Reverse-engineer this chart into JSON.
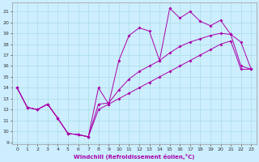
{
  "title": "",
  "xlabel": "Windchill (Refroidissement éolien,°C)",
  "xlim": [
    -0.5,
    23.5
  ],
  "ylim": [
    8.8,
    21.8
  ],
  "xticks": [
    0,
    1,
    2,
    3,
    4,
    5,
    6,
    7,
    8,
    9,
    10,
    11,
    12,
    13,
    14,
    15,
    16,
    17,
    18,
    19,
    20,
    21,
    22,
    23
  ],
  "yticks": [
    9,
    10,
    11,
    12,
    13,
    14,
    15,
    16,
    17,
    18,
    19,
    20,
    21
  ],
  "bg_color": "#cceeff",
  "grid_color": "#aadddd",
  "line_color": "#aa00aa",
  "line1_x": [
    0,
    1,
    2,
    3,
    4,
    5,
    6,
    7,
    8,
    9,
    10,
    11,
    12,
    13,
    14,
    15,
    16,
    17,
    18,
    19,
    20,
    21,
    22,
    23
  ],
  "line1_y": [
    14.0,
    12.2,
    12.0,
    12.5,
    11.2,
    9.8,
    9.7,
    9.5,
    14.0,
    12.5,
    16.5,
    18.8,
    19.5,
    19.2,
    16.5,
    21.3,
    20.4,
    21.0,
    20.1,
    19.7,
    20.2,
    18.9,
    16.0,
    15.7
  ],
  "line2_x": [
    0,
    1,
    2,
    3,
    4,
    5,
    6,
    7,
    8,
    9,
    10,
    11,
    12,
    13,
    14,
    15,
    16,
    17,
    18,
    19,
    20,
    21,
    22,
    23
  ],
  "line2_y": [
    14.0,
    12.2,
    12.0,
    12.5,
    11.2,
    9.8,
    9.7,
    9.5,
    12.5,
    12.6,
    13.8,
    14.8,
    15.5,
    16.0,
    16.5,
    17.2,
    17.8,
    18.2,
    18.5,
    18.8,
    19.0,
    18.9,
    18.2,
    15.7
  ],
  "line3_x": [
    0,
    1,
    2,
    3,
    4,
    5,
    6,
    7,
    8,
    9,
    10,
    11,
    12,
    13,
    14,
    15,
    16,
    17,
    18,
    19,
    20,
    21,
    22,
    23
  ],
  "line3_y": [
    14.0,
    12.2,
    12.0,
    12.5,
    11.2,
    9.8,
    9.7,
    9.5,
    12.0,
    12.5,
    13.0,
    13.5,
    14.0,
    14.5,
    15.0,
    15.5,
    16.0,
    16.5,
    17.0,
    17.5,
    18.0,
    18.3,
    15.7,
    15.7
  ]
}
